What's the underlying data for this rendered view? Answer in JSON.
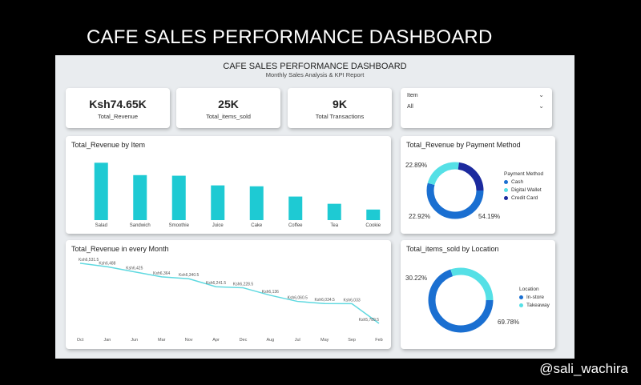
{
  "outer_title": "CAFE SALES PERFORMANCE DASHBOARD",
  "handle": "@sali_wachira",
  "header": {
    "title": "CAFE SALES PERFORMANCE DASHBOARD",
    "subtitle": "Monthly Sales Analysis & KPI Report"
  },
  "kpis": [
    {
      "value": "Ksh74.65K",
      "label": "Total_Revenue"
    },
    {
      "value": "25K",
      "label": "Total_items_sold"
    },
    {
      "value": "9K",
      "label": "Total Transactions"
    }
  ],
  "slicer": {
    "label": "Item",
    "value": "All"
  },
  "colors": {
    "teal": "#1ecad3",
    "line": "#5fd9e0",
    "cash": "#1a6fd1",
    "digital": "#55e0e6",
    "credit": "#1c2a9e",
    "instore": "#1a6fd1",
    "takeaway": "#55e0e6"
  },
  "chart_data": [
    {
      "type": "bar",
      "title": "Total_Revenue by Item",
      "categories": [
        "Salad",
        "Sandwich",
        "Smoothie",
        "Juice",
        "Cake",
        "Coffee",
        "Tea",
        "Cookie"
      ],
      "values": [
        19000,
        14900,
        14700,
        11500,
        11200,
        7800,
        5400,
        3500
      ],
      "ylim": [
        0,
        22000
      ]
    },
    {
      "type": "pie",
      "title": "Total_Revenue by Payment Method",
      "legend_title": "Payment Method",
      "labels": [
        "Cash",
        "Digital Wallet",
        "Credit Card"
      ],
      "values": [
        54.19,
        22.92,
        22.89
      ],
      "value_labels": [
        "54.19%",
        "22.92%",
        "22.89%"
      ]
    },
    {
      "type": "line",
      "title": "Total_Revenue in every Month",
      "categories": [
        "Oct",
        "Jan",
        "Jun",
        "Mar",
        "Nov",
        "Apr",
        "Dec",
        "Aug",
        "Jul",
        "May",
        "Sep",
        "Feb"
      ],
      "values": [
        6531.5,
        6488,
        6425,
        6364,
        6340.5,
        6241.5,
        6228.5,
        6136,
        6060.5,
        6034.5,
        6033,
        5789.5
      ],
      "value_labels": [
        "Ksh6,531.5",
        "Ksh6,488",
        "Ksh6,425",
        "Ksh6,364",
        "Ksh6,340.5",
        "Ksh6,241.5",
        "Ksh6,228.5",
        "Ksh6,136",
        "Ksh6,060.5",
        "Ksh6,034.5",
        "Ksh6,033",
        "Ksh5,789.5"
      ],
      "ylim": [
        5750,
        6560
      ]
    },
    {
      "type": "pie",
      "title": "Total_items_sold by Location",
      "legend_title": "Location",
      "labels": [
        "In-store",
        "Takeaway"
      ],
      "values": [
        69.78,
        30.22
      ],
      "value_labels": [
        "69.78%",
        "30.22%"
      ]
    }
  ]
}
